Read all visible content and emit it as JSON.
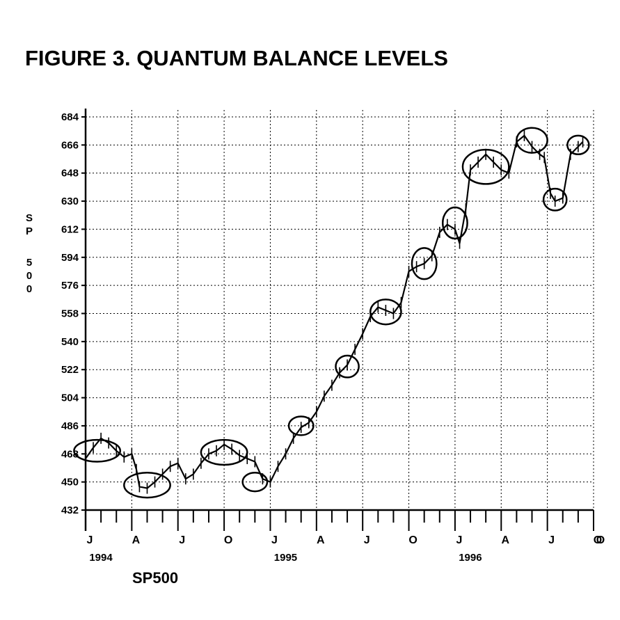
{
  "chart_data": {
    "type": "line",
    "title": "FIGURE 3. QUANTUM BALANCE LEVELS",
    "ylabel": "SP 500",
    "series_label": "SP500",
    "ylim": [
      432,
      684
    ],
    "yticks": [
      432,
      450,
      468,
      486,
      504,
      522,
      540,
      558,
      576,
      594,
      612,
      630,
      648,
      666,
      684
    ],
    "grid": true,
    "month_labels": [
      "J",
      "A",
      "J",
      "O",
      "J",
      "A",
      "J",
      "O",
      "J",
      "A",
      "J",
      "O"
    ],
    "year_labels": [
      "1994",
      "1995",
      "1996"
    ],
    "x_range_months": [
      0,
      33
    ],
    "series": [
      {
        "x": [
          0,
          0.5,
          1.0,
          1.5,
          2.0,
          2.5,
          3.0,
          3.3,
          3.5,
          4.0,
          4.5,
          5.0,
          5.5,
          6.0,
          6.5,
          7.0,
          7.5,
          8.0,
          8.5,
          9.0,
          9.5,
          10.0,
          10.5,
          11.0,
          11.5,
          12.0,
          12.5,
          13.0,
          13.5,
          14.0,
          14.5,
          15.0,
          15.5,
          16.0,
          16.5,
          17.0,
          17.5,
          18.0,
          18.5,
          19.0,
          19.5,
          20.0,
          20.5,
          21.0,
          21.5,
          22.0,
          22.5,
          23.0,
          23.5,
          24.0,
          24.3,
          24.7,
          25.0,
          25.5,
          26.0,
          26.5,
          27.0,
          27.5,
          28.0,
          28.5,
          29.0,
          29.5,
          29.8,
          30.2,
          30.5,
          31.0,
          31.5,
          32.0,
          32.3
        ],
        "y": [
          465,
          472,
          478,
          475,
          470,
          466,
          468,
          458,
          447,
          446,
          450,
          455,
          460,
          462,
          452,
          455,
          462,
          468,
          470,
          474,
          471,
          467,
          465,
          463,
          452,
          450,
          460,
          468,
          478,
          485,
          488,
          495,
          505,
          512,
          520,
          525,
          535,
          545,
          556,
          562,
          560,
          558,
          565,
          585,
          588,
          590,
          595,
          610,
          615,
          612,
          603,
          625,
          650,
          655,
          660,
          655,
          650,
          648,
          668,
          672,
          665,
          660,
          658,
          635,
          630,
          632,
          660,
          665,
          668
        ]
      }
    ],
    "annotations": [
      {
        "type": "ellipse",
        "center_month": 0.75,
        "center_value": 470,
        "half_width_months": 1.5,
        "half_height_value": 7
      },
      {
        "type": "ellipse",
        "center_month": 4.0,
        "center_value": 448,
        "half_width_months": 1.5,
        "half_height_value": 8
      },
      {
        "type": "ellipse",
        "center_month": 9.0,
        "center_value": 469,
        "half_width_months": 1.5,
        "half_height_value": 8
      },
      {
        "type": "ellipse",
        "center_month": 11.0,
        "center_value": 450,
        "half_width_months": 0.8,
        "half_height_value": 6
      },
      {
        "type": "ellipse",
        "center_month": 14.0,
        "center_value": 486,
        "half_width_months": 0.8,
        "half_height_value": 6
      },
      {
        "type": "ellipse",
        "center_month": 17.0,
        "center_value": 524,
        "half_width_months": 0.75,
        "half_height_value": 7
      },
      {
        "type": "ellipse",
        "center_month": 19.5,
        "center_value": 559,
        "half_width_months": 1.0,
        "half_height_value": 8
      },
      {
        "type": "ellipse",
        "center_month": 22.0,
        "center_value": 590,
        "half_width_months": 0.8,
        "half_height_value": 10
      },
      {
        "type": "ellipse",
        "center_month": 24.0,
        "center_value": 616,
        "half_width_months": 0.8,
        "half_height_value": 10
      },
      {
        "type": "ellipse",
        "center_month": 26.0,
        "center_value": 652,
        "half_width_months": 1.5,
        "half_height_value": 11
      },
      {
        "type": "ellipse",
        "center_month": 29.0,
        "center_value": 669,
        "half_width_months": 1.0,
        "half_height_value": 8
      },
      {
        "type": "ellipse",
        "center_month": 30.5,
        "center_value": 631,
        "half_width_months": 0.75,
        "half_height_value": 7
      },
      {
        "type": "ellipse",
        "center_month": 32.0,
        "center_value": 666,
        "half_width_months": 0.7,
        "half_height_value": 6
      }
    ]
  }
}
